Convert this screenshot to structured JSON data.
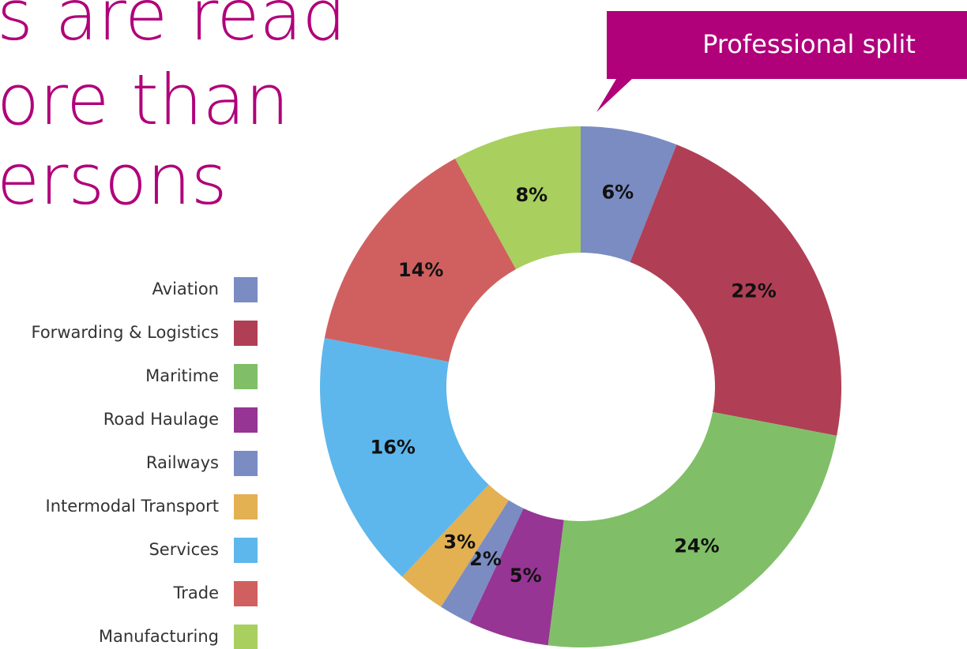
{
  "title_lines": [
    "s are read",
    "ore than",
    "ersons"
  ],
  "callout": "Professional split",
  "chart_data": {
    "type": "donut",
    "categories": [
      "Aviation",
      "Forwarding & Logistics",
      "Maritime",
      "Road Haulage",
      "Railways",
      "Intermodal Transport",
      "Services",
      "Trade",
      "Manufacturing"
    ],
    "values": [
      6,
      22,
      24,
      5,
      2,
      3,
      16,
      14,
      8
    ],
    "value_labels": [
      "6%",
      "22%",
      "24%",
      "5%",
      "2%",
      "3%",
      "16%",
      "14%",
      "8%"
    ],
    "colors": [
      "#7a8cc2",
      "#b03f55",
      "#80bf67",
      "#963594",
      "#7a8cc2",
      "#e3b052",
      "#5db7ec",
      "#d0605f",
      "#a9cf5f"
    ],
    "legend": "left"
  }
}
